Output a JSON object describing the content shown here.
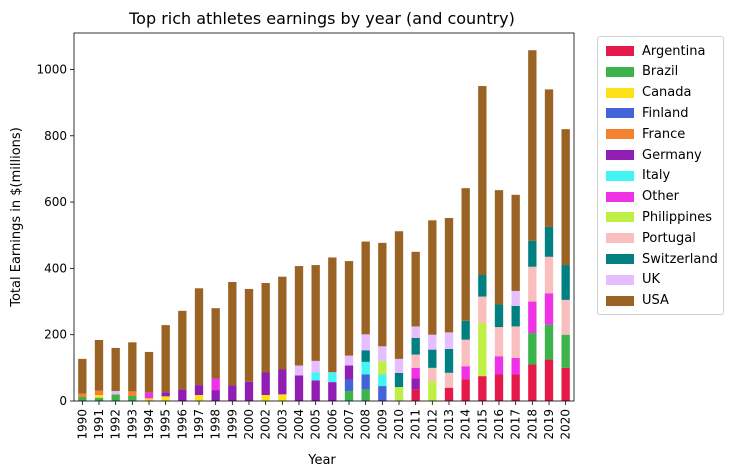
{
  "chart_data": {
    "type": "bar",
    "stacked": true,
    "title": "Top rich athletes earnings by year (and country)",
    "xlabel": "Year",
    "ylabel": "Total Earnings in $(millions)",
    "ylim": [
      0,
      1110
    ],
    "yticks": [
      0,
      200,
      400,
      600,
      800,
      1000
    ],
    "legend_position": "outside right",
    "grid": false,
    "categories": [
      "1990",
      "1991",
      "1992",
      "1993",
      "1994",
      "1995",
      "1996",
      "1997",
      "1998",
      "1999",
      "2000",
      "2002",
      "2003",
      "2004",
      "2005",
      "2006",
      "2007",
      "2008",
      "2009",
      "2010",
      "2011",
      "2012",
      "2013",
      "2014",
      "2015",
      "2016",
      "2017",
      "2018",
      "2019",
      "2020"
    ],
    "series": [
      {
        "name": "Argentina",
        "color": "#e6194b",
        "values": [
          0,
          0,
          0,
          0,
          0,
          0,
          0,
          0,
          0,
          0,
          0,
          0,
          0,
          0,
          0,
          0,
          0,
          0,
          0,
          0,
          35,
          0,
          40,
          65,
          75,
          80,
          80,
          110,
          125,
          100
        ]
      },
      {
        "name": "Brazil",
        "color": "#3cb44b",
        "values": [
          12,
          10,
          20,
          15,
          0,
          0,
          0,
          0,
          0,
          0,
          0,
          0,
          0,
          0,
          0,
          0,
          30,
          35,
          0,
          0,
          0,
          0,
          0,
          0,
          0,
          0,
          0,
          95,
          105,
          100
        ]
      },
      {
        "name": "Canada",
        "color": "#ffe119",
        "values": [
          0,
          8,
          0,
          0,
          8,
          14,
          0,
          18,
          0,
          0,
          0,
          18,
          20,
          0,
          0,
          0,
          0,
          0,
          0,
          0,
          0,
          0,
          0,
          0,
          0,
          0,
          0,
          0,
          0,
          0
        ]
      },
      {
        "name": "Finland",
        "color": "#4363d8",
        "values": [
          0,
          0,
          0,
          0,
          0,
          0,
          0,
          0,
          0,
          0,
          0,
          0,
          0,
          0,
          0,
          0,
          35,
          45,
          45,
          0,
          0,
          0,
          0,
          0,
          0,
          0,
          0,
          0,
          0,
          0
        ]
      },
      {
        "name": "France",
        "color": "#f58231",
        "values": [
          10,
          13,
          0,
          14,
          0,
          0,
          0,
          0,
          0,
          0,
          0,
          0,
          0,
          0,
          0,
          0,
          0,
          0,
          0,
          0,
          0,
          0,
          0,
          0,
          0,
          0,
          0,
          0,
          0,
          0
        ]
      },
      {
        "name": "Germany",
        "color": "#911eb4",
        "values": [
          0,
          0,
          0,
          0,
          0,
          12,
          35,
          30,
          33,
          47,
          58,
          68,
          75,
          77,
          62,
          57,
          42,
          0,
          0,
          0,
          33,
          0,
          0,
          0,
          0,
          0,
          0,
          0,
          0,
          0
        ]
      },
      {
        "name": "Italy",
        "color": "#42f4f4",
        "values": [
          0,
          0,
          0,
          0,
          0,
          0,
          0,
          0,
          0,
          0,
          0,
          0,
          0,
          0,
          24,
          30,
          0,
          38,
          35,
          0,
          0,
          0,
          0,
          0,
          0,
          0,
          0,
          0,
          0,
          0
        ]
      },
      {
        "name": "Other",
        "color": "#f032e6",
        "values": [
          0,
          0,
          0,
          0,
          17,
          0,
          0,
          0,
          35,
          0,
          0,
          0,
          0,
          0,
          0,
          0,
          0,
          0,
          0,
          0,
          32,
          0,
          0,
          40,
          0,
          55,
          50,
          95,
          95,
          0
        ]
      },
      {
        "name": "Philippines",
        "color": "#bfef45",
        "values": [
          0,
          0,
          0,
          0,
          0,
          0,
          0,
          0,
          0,
          0,
          0,
          0,
          0,
          0,
          0,
          0,
          0,
          0,
          40,
          42,
          0,
          60,
          0,
          0,
          160,
          0,
          0,
          0,
          0,
          0
        ]
      },
      {
        "name": "Portugal",
        "color": "#fabebe",
        "values": [
          0,
          0,
          0,
          0,
          0,
          0,
          0,
          0,
          0,
          0,
          0,
          0,
          0,
          0,
          0,
          0,
          0,
          0,
          0,
          0,
          40,
          40,
          45,
          80,
          80,
          88,
          95,
          105,
          110,
          105
        ]
      },
      {
        "name": "Switzerland",
        "color": "#008080",
        "values": [
          0,
          0,
          0,
          0,
          0,
          0,
          0,
          0,
          0,
          0,
          0,
          0,
          0,
          0,
          0,
          0,
          0,
          35,
          0,
          43,
          50,
          55,
          72,
          57,
          65,
          68,
          62,
          78,
          90,
          105
        ]
      },
      {
        "name": "UK",
        "color": "#e6beff",
        "values": [
          0,
          0,
          10,
          0,
          0,
          0,
          0,
          0,
          0,
          0,
          0,
          0,
          0,
          30,
          35,
          0,
          30,
          48,
          45,
          42,
          35,
          45,
          50,
          0,
          0,
          0,
          45,
          0,
          0,
          0
        ]
      },
      {
        "name": "USA",
        "color": "#9a6324",
        "values": [
          105,
          153,
          130,
          148,
          123,
          203,
          237,
          292,
          212,
          312,
          280,
          270,
          280,
          300,
          289,
          346,
          285,
          280,
          312,
          385,
          225,
          345,
          345,
          400,
          570,
          345,
          290,
          575,
          415,
          410
        ]
      }
    ]
  }
}
